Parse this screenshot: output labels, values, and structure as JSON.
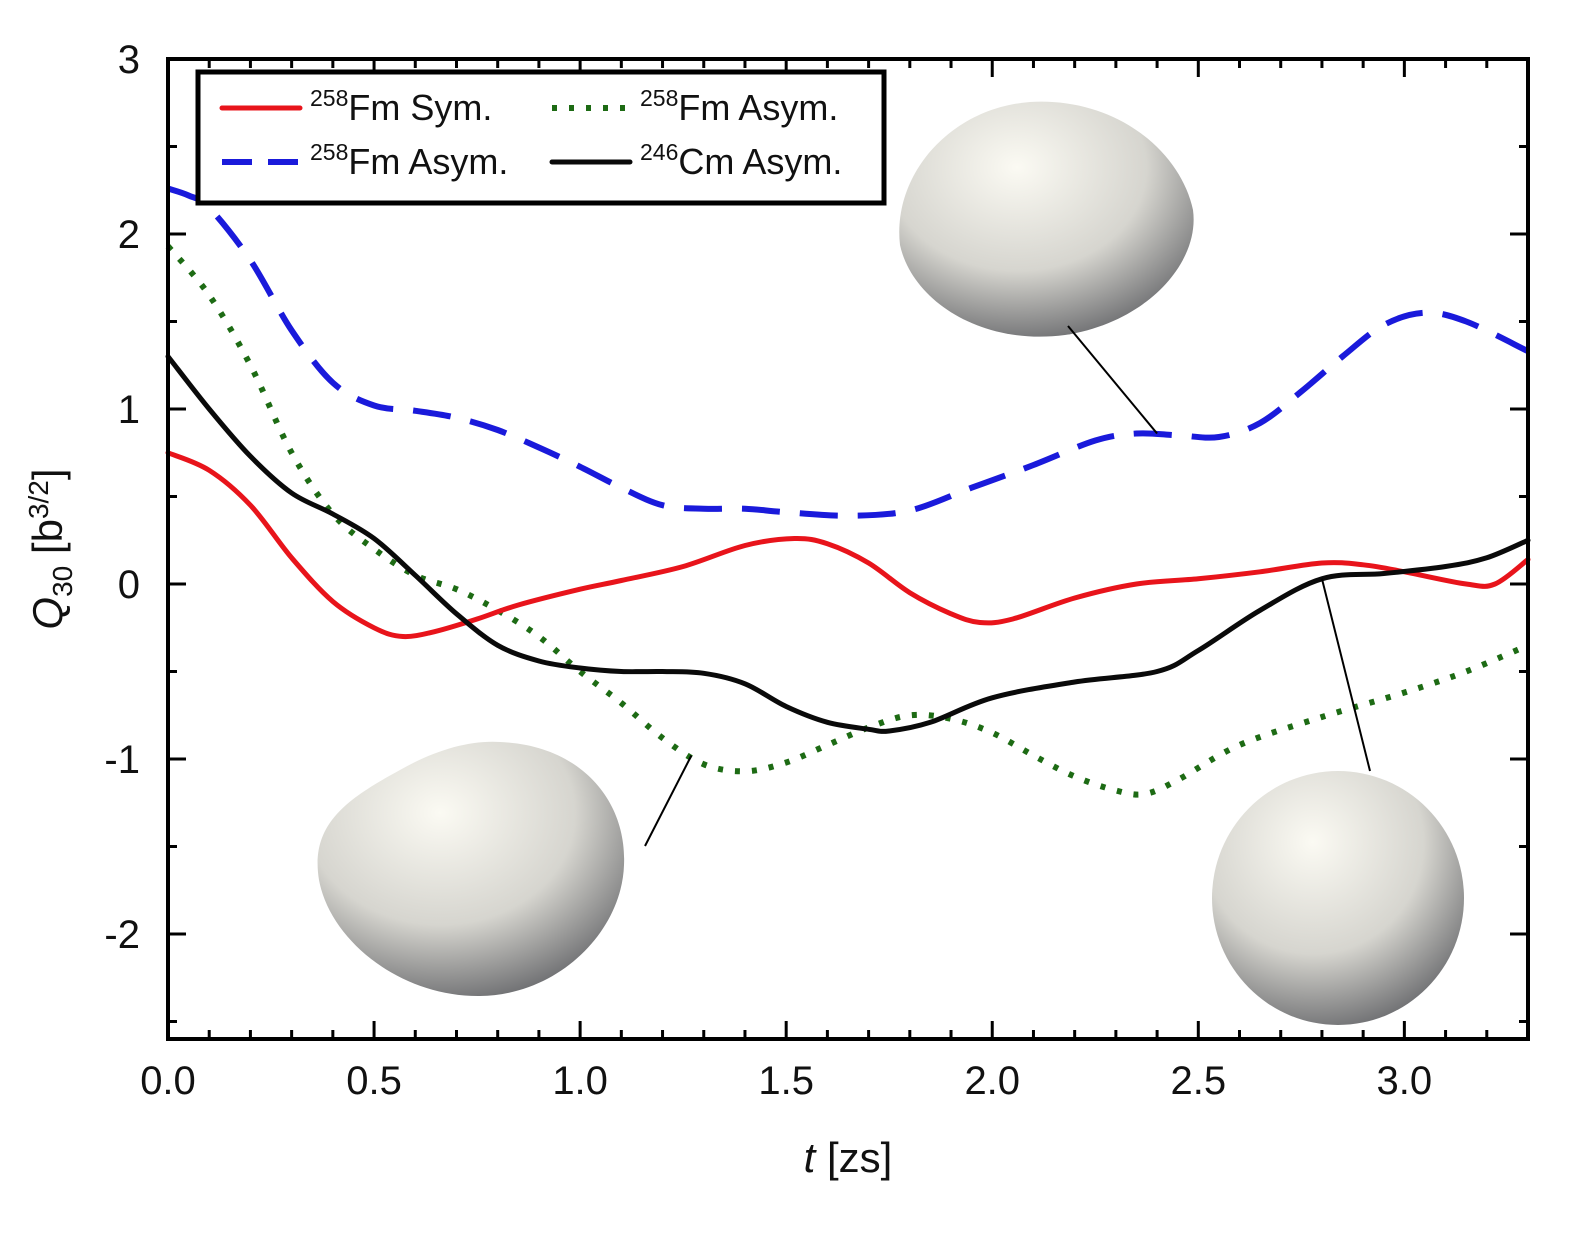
{
  "chart_data": {
    "type": "line",
    "title": "",
    "xlabel": {
      "italic": "t",
      "rest": " [zs]"
    },
    "ylabel": {
      "base": "Q",
      "sub": "30",
      "unit_pre": " [b",
      "unit_sup": "3/2",
      "unit_post": "]"
    },
    "xlim": [
      0.0,
      3.3
    ],
    "ylim": [
      -2.6,
      3.0
    ],
    "x_ticks": [
      0.0,
      0.5,
      1.0,
      1.5,
      2.0,
      2.5,
      3.0
    ],
    "x_tick_labels": [
      "0.0",
      "0.5",
      "1.0",
      "1.5",
      "2.0",
      "2.5",
      "3.0"
    ],
    "y_ticks": [
      -2,
      -1,
      0,
      1,
      2,
      3
    ],
    "y_tick_labels": [
      "-2",
      "-1",
      "0",
      "1",
      "2",
      "3"
    ],
    "grid": false,
    "legend_position": "top-left",
    "series": [
      {
        "name": "258Fm Sym.",
        "sup": "258",
        "label": "Fm Sym.",
        "color": "#e8141b",
        "style": "solid",
        "x": [
          0.0,
          0.1,
          0.2,
          0.3,
          0.4,
          0.5,
          0.57,
          0.65,
          0.75,
          0.85,
          1.0,
          1.1,
          1.25,
          1.4,
          1.52,
          1.6,
          1.7,
          1.8,
          1.9,
          1.97,
          2.05,
          2.2,
          2.35,
          2.5,
          2.65,
          2.8,
          2.9,
          3.0,
          3.15,
          3.22,
          3.3
        ],
        "y": [
          0.75,
          0.65,
          0.45,
          0.15,
          -0.1,
          -0.25,
          -0.3,
          -0.27,
          -0.2,
          -0.12,
          -0.03,
          0.02,
          0.1,
          0.22,
          0.26,
          0.23,
          0.12,
          -0.05,
          -0.17,
          -0.22,
          -0.2,
          -0.08,
          0.0,
          0.03,
          0.07,
          0.12,
          0.11,
          0.07,
          0.0,
          0.0,
          0.14
        ]
      },
      {
        "name": "258Fm Asym. (dashed)",
        "sup": "258",
        "label": "Fm Asym.",
        "color": "#1a1adb",
        "style": "dashed",
        "x": [
          0.0,
          0.05,
          0.1,
          0.2,
          0.3,
          0.4,
          0.5,
          0.6,
          0.7,
          0.8,
          0.9,
          1.0,
          1.1,
          1.2,
          1.3,
          1.4,
          1.5,
          1.65,
          1.8,
          1.95,
          2.1,
          2.25,
          2.35,
          2.45,
          2.55,
          2.65,
          2.75,
          2.85,
          2.95,
          3.05,
          3.15,
          3.3
        ],
        "y": [
          2.26,
          2.22,
          2.15,
          1.85,
          1.45,
          1.15,
          1.02,
          0.99,
          0.95,
          0.88,
          0.78,
          0.67,
          0.55,
          0.45,
          0.43,
          0.43,
          0.41,
          0.39,
          0.42,
          0.55,
          0.68,
          0.82,
          0.86,
          0.85,
          0.84,
          0.92,
          1.1,
          1.3,
          1.48,
          1.55,
          1.5,
          1.33
        ]
      },
      {
        "name": "258Fm Asym. (dotted)",
        "sup": "258",
        "label": "Fm Asym.",
        "color": "#1d6b14",
        "style": "dotted",
        "x": [
          0.0,
          0.1,
          0.2,
          0.3,
          0.4,
          0.5,
          0.6,
          0.7,
          0.8,
          0.9,
          1.0,
          1.1,
          1.2,
          1.3,
          1.4,
          1.5,
          1.6,
          1.7,
          1.8,
          1.9,
          2.0,
          2.1,
          2.2,
          2.3,
          2.37,
          2.45,
          2.6,
          2.8,
          3.0,
          3.15,
          3.3
        ],
        "y": [
          1.93,
          1.65,
          1.25,
          0.75,
          0.4,
          0.2,
          0.05,
          -0.03,
          -0.15,
          -0.3,
          -0.5,
          -0.68,
          -0.88,
          -1.03,
          -1.07,
          -1.02,
          -0.92,
          -0.82,
          -0.75,
          -0.77,
          -0.85,
          -0.98,
          -1.1,
          -1.18,
          -1.2,
          -1.12,
          -0.92,
          -0.76,
          -0.62,
          -0.5,
          -0.35
        ]
      },
      {
        "name": "246Cm Asym.",
        "sup": "246",
        "label": "Cm Asym.",
        "color": "#0a0a0a",
        "style": "solid",
        "x": [
          0.0,
          0.1,
          0.2,
          0.3,
          0.4,
          0.5,
          0.6,
          0.7,
          0.8,
          0.9,
          1.0,
          1.1,
          1.2,
          1.3,
          1.4,
          1.5,
          1.6,
          1.7,
          1.75,
          1.85,
          2.0,
          2.2,
          2.4,
          2.5,
          2.65,
          2.8,
          2.95,
          3.1,
          3.2,
          3.3
        ],
        "y": [
          1.3,
          1.0,
          0.73,
          0.52,
          0.4,
          0.26,
          0.05,
          -0.17,
          -0.35,
          -0.44,
          -0.48,
          -0.5,
          -0.5,
          -0.51,
          -0.57,
          -0.7,
          -0.79,
          -0.83,
          -0.84,
          -0.79,
          -0.65,
          -0.56,
          -0.5,
          -0.38,
          -0.15,
          0.03,
          0.06,
          0.1,
          0.15,
          0.25
        ]
      }
    ],
    "annotations": [
      {
        "name": "shape-top-right",
        "anchor": [
          2.4,
          0.86
        ]
      },
      {
        "name": "shape-bottom-left",
        "anchor": [
          1.27,
          -0.98
        ]
      },
      {
        "name": "shape-bottom-right",
        "anchor": [
          2.8,
          0.03
        ]
      }
    ]
  }
}
